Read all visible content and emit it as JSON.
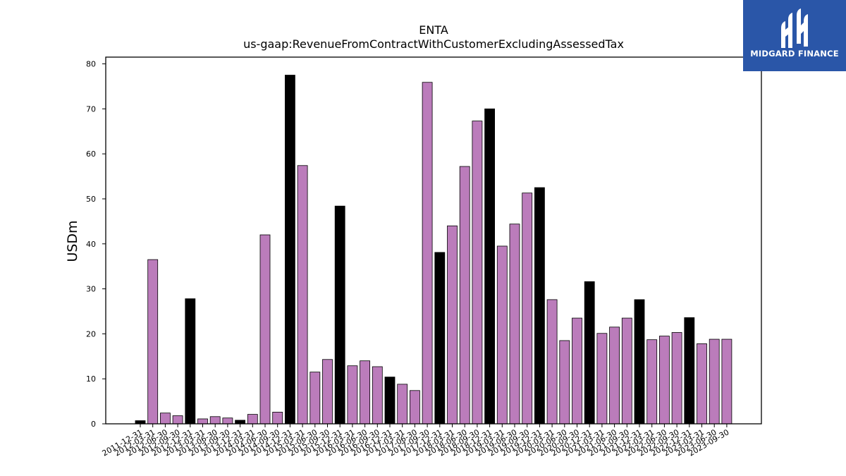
{
  "brand": {
    "name": "MIDGARD FINANCE",
    "bg_color": "#2a56a8"
  },
  "chart_data": {
    "type": "bar",
    "title": "ENTA",
    "subtitle": "us-gaap:RevenueFromContractWithCustomerExcludingAssessedTax",
    "ylabel": "USDm",
    "xlabel": "",
    "ylim": [
      0,
      81.5
    ],
    "yticks": [
      0,
      10,
      20,
      30,
      40,
      50,
      60,
      70,
      80
    ],
    "grid": false,
    "colors": {
      "quarterly": "#bb7cbb",
      "annual": "#000000",
      "edge": "#000000"
    },
    "categories": [
      "2011-12-31",
      "2012-03-31",
      "2012-06-30",
      "2012-09-30",
      "2012-12-31",
      "2013-03-31",
      "2013-06-30",
      "2013-09-30",
      "2013-12-31",
      "2014-03-31",
      "2014-06-30",
      "2014-09-30",
      "2014-12-31",
      "2015-03-31",
      "2015-06-30",
      "2015-09-30",
      "2015-12-31",
      "2016-03-31",
      "2016-06-30",
      "2016-09-30",
      "2016-12-31",
      "2017-03-31",
      "2017-06-30",
      "2017-09-30",
      "2017-12-31",
      "2018-03-31",
      "2018-06-30",
      "2018-09-30",
      "2018-12-31",
      "2019-03-31",
      "2019-06-30",
      "2019-09-30",
      "2019-12-31",
      "2020-03-31",
      "2020-06-30",
      "2020-09-30",
      "2020-12-31",
      "2021-03-31",
      "2021-06-30",
      "2021-09-30",
      "2021-12-31",
      "2022-03-31",
      "2022-06-30",
      "2022-09-30",
      "2022-12-31",
      "2023-03-31",
      "2023-06-30",
      "2023-09-30"
    ],
    "values": [
      0.7,
      36.5,
      2.4,
      1.8,
      27.8,
      1.1,
      1.6,
      1.3,
      0.8,
      2.1,
      42.0,
      2.6,
      77.5,
      57.4,
      11.5,
      14.3,
      48.4,
      12.9,
      14.0,
      12.7,
      10.4,
      8.8,
      7.4,
      75.9,
      38.1,
      44.0,
      57.2,
      67.3,
      70.0,
      39.5,
      44.4,
      51.3,
      52.5,
      27.6,
      18.5,
      23.5,
      31.6,
      20.1,
      21.5,
      23.5,
      27.6,
      18.7,
      19.5,
      20.3,
      23.6,
      17.8,
      18.8,
      18.8
    ],
    "annual": [
      true,
      false,
      false,
      false,
      true,
      false,
      false,
      false,
      true,
      false,
      false,
      false,
      true,
      false,
      false,
      false,
      true,
      false,
      false,
      false,
      true,
      false,
      false,
      false,
      true,
      false,
      false,
      false,
      true,
      false,
      false,
      false,
      true,
      false,
      false,
      false,
      true,
      false,
      false,
      false,
      true,
      false,
      false,
      false,
      true,
      false,
      false,
      false
    ]
  }
}
